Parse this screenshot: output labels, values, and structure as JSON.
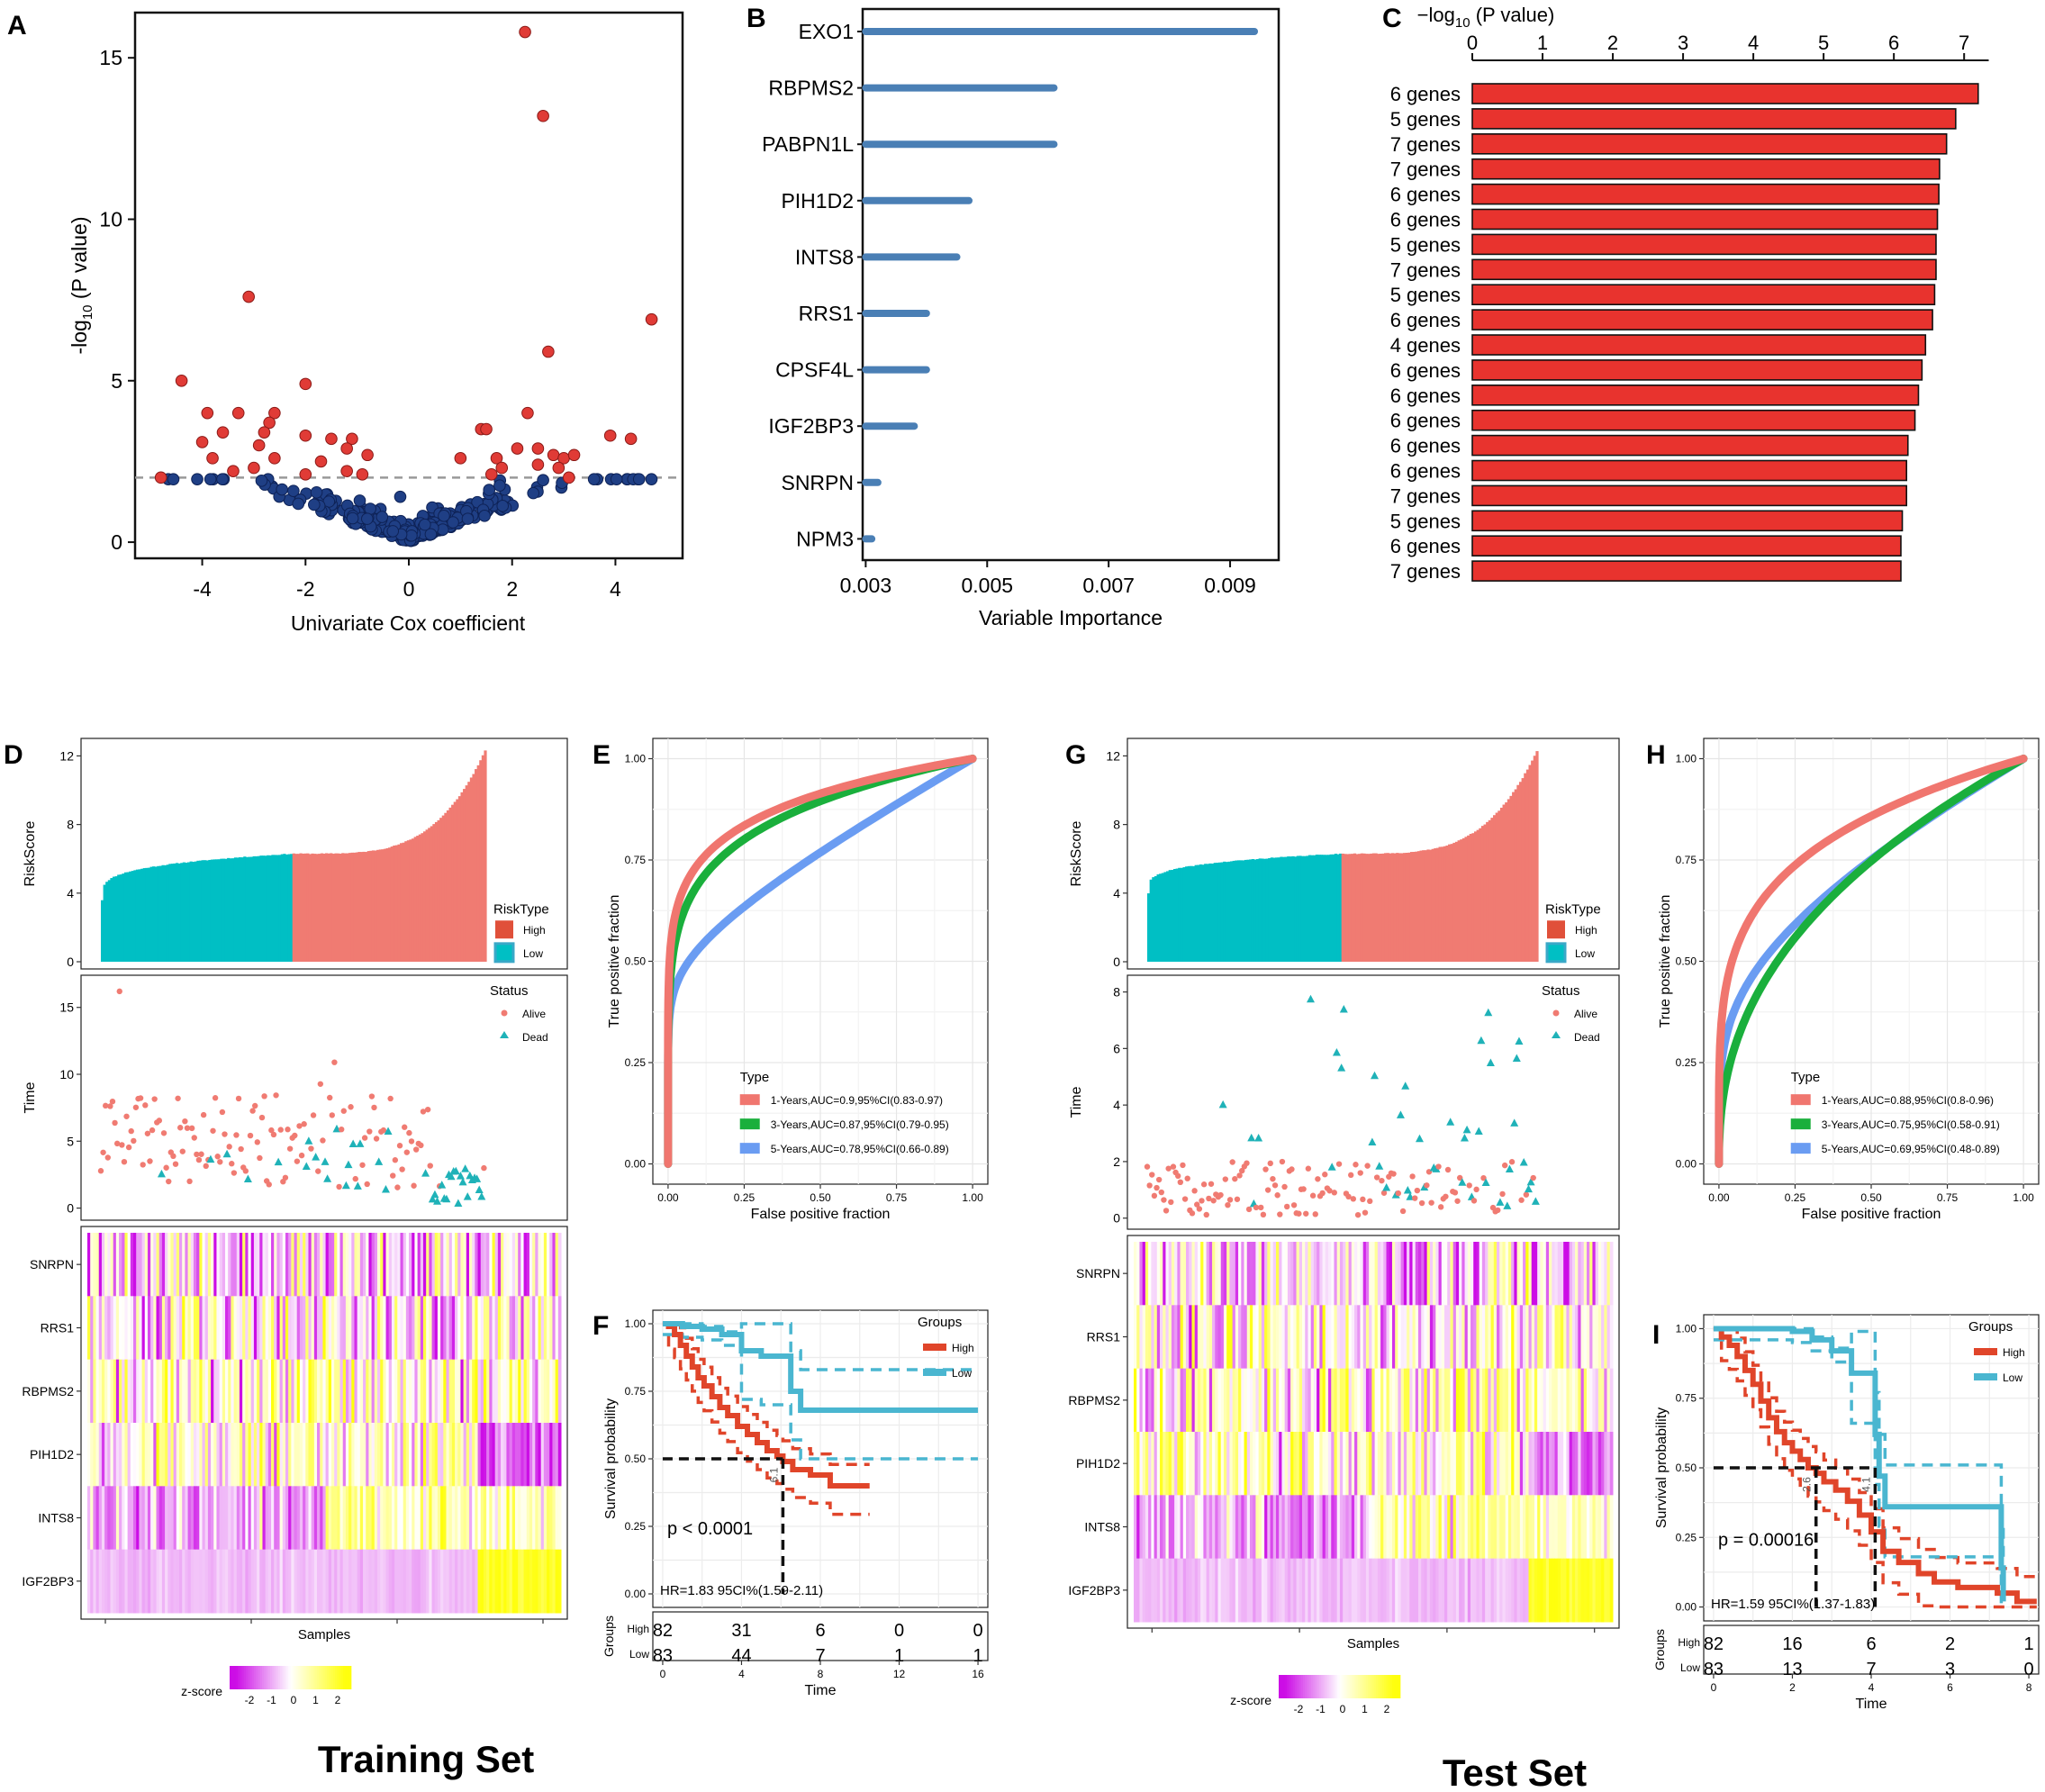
{
  "panel_letters": {
    "A": "A",
    "B": "B",
    "C": "C",
    "D": "D",
    "E": "E",
    "F": "F",
    "G": "G",
    "H": "H",
    "I": "I"
  },
  "set_titles": {
    "train": "Training Set",
    "test": "Test Set"
  },
  "colors": {
    "red": "#e03b36",
    "navy": "#1f3f85",
    "steel": "#4a7fb5",
    "barred": "#e8332e",
    "high": "#f07b72",
    "low": "#00bfc4",
    "dead": "#1fb2b8",
    "km_high": "#e0452a",
    "km_low": "#4ab6d0",
    "roc1": "#f0766f",
    "roc3": "#1aaf3c",
    "roc5": "#6a9cf2"
  },
  "chart_data": [
    {
      "id": "A",
      "type": "scatter",
      "xlabel": "Univariate Cox coefficient",
      "ylabel_main": "-log",
      "ylabel_sub": "10",
      "ylabel_tail": " (P value)",
      "xticks": [
        "-4",
        "-2",
        "0",
        "2",
        "4"
      ],
      "xtick_vals": [
        -4,
        -2,
        0,
        2,
        4
      ],
      "yticks": [
        "0",
        "5",
        "10",
        "15"
      ],
      "ytick_vals": [
        0,
        5,
        10,
        15
      ],
      "xlim": [
        -5.3,
        5.3
      ],
      "ylim": [
        -0.5,
        16.4
      ],
      "threshold": 2,
      "red_points": [
        [
          2.25,
          15.8
        ],
        [
          2.6,
          13.2
        ],
        [
          -3.1,
          7.6
        ],
        [
          4.7,
          6.9
        ],
        [
          2.7,
          5.9
        ],
        [
          -4.4,
          5.0
        ],
        [
          -2.0,
          4.9
        ],
        [
          -2.6,
          4.0
        ],
        [
          -3.3,
          4.0
        ],
        [
          -3.9,
          4.0
        ],
        [
          -2.7,
          3.7
        ],
        [
          -3.6,
          3.4
        ],
        [
          -2.8,
          3.4
        ],
        [
          -2.0,
          3.3
        ],
        [
          -1.1,
          3.2
        ],
        [
          -4.0,
          3.1
        ],
        [
          -2.9,
          3.0
        ],
        [
          -1.5,
          3.2
        ],
        [
          -1.2,
          2.9
        ],
        [
          -0.8,
          2.7
        ],
        [
          -3.8,
          2.6
        ],
        [
          -2.6,
          2.6
        ],
        [
          -1.7,
          2.5
        ],
        [
          -1.2,
          2.2
        ],
        [
          -3.4,
          2.2
        ],
        [
          -3.0,
          2.3
        ],
        [
          -2.0,
          2.1
        ],
        [
          -0.9,
          2.1
        ],
        [
          -4.8,
          2.0
        ],
        [
          1.4,
          3.5
        ],
        [
          1.5,
          3.5
        ],
        [
          2.3,
          4.0
        ],
        [
          3.9,
          3.3
        ],
        [
          4.3,
          3.2
        ],
        [
          2.1,
          2.9
        ],
        [
          2.5,
          2.9
        ],
        [
          2.8,
          2.7
        ],
        [
          3.0,
          2.6
        ],
        [
          3.2,
          2.7
        ],
        [
          1.7,
          2.6
        ],
        [
          1.8,
          2.3
        ],
        [
          2.5,
          2.4
        ],
        [
          1.0,
          2.6
        ],
        [
          2.9,
          2.3
        ],
        [
          1.6,
          2.1
        ],
        [
          3.1,
          2.0
        ]
      ],
      "blue_seed": 7,
      "blue_count": 300
    },
    {
      "id": "B",
      "type": "bar",
      "orientation": "horizontal",
      "xlabel": "Variable Importance",
      "categories": [
        "EXO1",
        "RBPMS2",
        "PABPN1L",
        "PIH1D2",
        "INTS8",
        "RRS1",
        "CPSF4L",
        "IGF2BP3",
        "SNRPN",
        "NPM3"
      ],
      "values": [
        0.0094,
        0.0061,
        0.0061,
        0.0047,
        0.0045,
        0.004,
        0.004,
        0.0038,
        0.0032,
        0.0031
      ],
      "xticks": [
        "0.003",
        "0.005",
        "0.007",
        "0.009"
      ],
      "xtick_vals": [
        0.003,
        0.005,
        0.007,
        0.009
      ],
      "xlim": [
        0.00295,
        0.0098
      ]
    },
    {
      "id": "C",
      "type": "bar",
      "orientation": "horizontal",
      "title_main": "−log",
      "title_sub": "10",
      "title_tail": " (P value)",
      "categories": [
        "6 genes",
        "5 genes",
        "7 genes",
        "7 genes",
        "6 genes",
        "6 genes",
        "5 genes",
        "7 genes",
        "5 genes",
        "6 genes",
        "4 genes",
        "6 genes",
        "6 genes",
        "6 genes",
        "6 genes",
        "6 genes",
        "7 genes",
        "5 genes",
        "6 genes",
        "7 genes"
      ],
      "values": [
        7.2,
        6.88,
        6.75,
        6.65,
        6.64,
        6.62,
        6.6,
        6.6,
        6.58,
        6.55,
        6.45,
        6.4,
        6.35,
        6.3,
        6.2,
        6.18,
        6.18,
        6.12,
        6.1,
        6.1
      ],
      "xticks": [
        "0",
        "1",
        "2",
        "3",
        "4",
        "5",
        "6",
        "7"
      ],
      "xtick_vals": [
        0,
        1,
        2,
        3,
        4,
        5,
        6,
        7
      ],
      "xlim": [
        0,
        7.6
      ]
    },
    {
      "id": "D",
      "type": "bar",
      "subtype": "risk-score-waterfall",
      "ylabel": "RiskScore",
      "yticks": [
        "0",
        "4",
        "8",
        "12"
      ],
      "ytick_vals": [
        0,
        4,
        8,
        12
      ],
      "ylim": [
        0,
        12.6
      ],
      "legend_title": "RiskType",
      "legend_items": [
        "High",
        "Low"
      ],
      "low_range": [
        3.6,
        6.3
      ],
      "high_range": [
        6.3,
        12.6
      ],
      "n": 165
    },
    {
      "id": "D2",
      "type": "scatter",
      "subtype": "survival-status",
      "ylabel": "Time",
      "yticks": [
        "0",
        "5",
        "10",
        "15"
      ],
      "ytick_vals": [
        0,
        5,
        10,
        15
      ],
      "ylim": [
        -0.5,
        17
      ],
      "legend_title": "Status",
      "legend_items": [
        "Alive",
        "Dead"
      ]
    },
    {
      "id": "D3",
      "type": "heatmap",
      "rows": [
        "SNRPN",
        "RRS1",
        "RBPMS2",
        "PIH1D2",
        "INTS8",
        "IGF2BP3"
      ],
      "xlabel": "Samples",
      "legend_title": "z-score",
      "legend_ticks": [
        "-2",
        "-1",
        "0",
        "1",
        "2"
      ]
    },
    {
      "id": "E",
      "type": "line",
      "subtype": "roc",
      "xlabel": "False positive fraction",
      "ylabel": "True positive fraction",
      "ticks": [
        "0.00",
        "0.25",
        "0.50",
        "0.75",
        "1.00"
      ],
      "tick_vals": [
        0,
        0.25,
        0.5,
        0.75,
        1
      ],
      "legend_title": "Type",
      "series": [
        {
          "name": "1-Years,AUC=0.9,95%CI(0.83-0.97)",
          "auc": 0.9
        },
        {
          "name": "3-Years,AUC=0.87,95%CI(0.79-0.95)",
          "auc": 0.87
        },
        {
          "name": "5-Years,AUC=0.78,95%CI(0.66-0.89)",
          "auc": 0.78
        }
      ]
    },
    {
      "id": "F",
      "type": "line",
      "subtype": "kaplan-meier",
      "xlabel": "Time",
      "ylabel": "Survival probability",
      "xticks": [
        "0",
        "4",
        "8",
        "12",
        "16"
      ],
      "xtick_vals": [
        0,
        4,
        8,
        12,
        16
      ],
      "xlim": [
        -0.5,
        16.5
      ],
      "yticks": [
        "0.00",
        "0.25",
        "0.50",
        "0.75",
        "1.00"
      ],
      "ytick_vals": [
        0,
        0.25,
        0.5,
        0.75,
        1
      ],
      "legend_title": "Groups",
      "legend_items": [
        "High",
        "Low"
      ],
      "pvalue": "p < 0.0001",
      "hr": "HR=1.83 95CI%(1.59-2.11)",
      "median_label": "6.1",
      "risk_table": {
        "label": "Groups",
        "rows": [
          {
            "name": "High",
            "counts": [
              "82",
              "31",
              "6",
              "0",
              "0"
            ]
          },
          {
            "name": "Low",
            "counts": [
              "83",
              "44",
              "7",
              "1",
              "1"
            ]
          }
        ]
      },
      "high": [
        [
          0,
          1
        ],
        [
          0.3,
          0.99
        ],
        [
          0.6,
          0.96
        ],
        [
          0.9,
          0.92
        ],
        [
          1.2,
          0.88
        ],
        [
          1.5,
          0.84
        ],
        [
          1.8,
          0.8
        ],
        [
          2.1,
          0.77
        ],
        [
          2.5,
          0.73
        ],
        [
          2.9,
          0.69
        ],
        [
          3.3,
          0.66
        ],
        [
          3.8,
          0.62
        ],
        [
          4.3,
          0.59
        ],
        [
          4.8,
          0.56
        ],
        [
          5.3,
          0.53
        ],
        [
          5.8,
          0.51
        ],
        [
          6.1,
          0.49
        ],
        [
          6.6,
          0.46
        ],
        [
          7.5,
          0.44
        ],
        [
          8.5,
          0.4
        ],
        [
          10.5,
          0.4
        ]
      ],
      "low": [
        [
          0,
          1
        ],
        [
          1,
          0.99
        ],
        [
          2,
          0.98
        ],
        [
          3,
          0.96
        ],
        [
          4,
          0.9
        ],
        [
          5,
          0.88
        ],
        [
          6,
          0.88
        ],
        [
          6.5,
          0.75
        ],
        [
          7,
          0.68
        ],
        [
          16,
          0.68
        ]
      ]
    },
    {
      "id": "G",
      "type": "bar",
      "subtype": "risk-score-waterfall",
      "ylabel": "RiskScore",
      "yticks": [
        "0",
        "4",
        "8",
        "12"
      ],
      "ytick_vals": [
        0,
        4,
        8,
        12
      ],
      "ylim": [
        0,
        12.6
      ],
      "legend_title": "RiskType",
      "legend_items": [
        "High",
        "Low"
      ],
      "low_range": [
        4.0,
        6.3
      ],
      "high_range": [
        6.3,
        12.6
      ],
      "n": 165
    },
    {
      "id": "G2",
      "type": "scatter",
      "subtype": "survival-status",
      "ylabel": "Time",
      "yticks": [
        "0",
        "2",
        "4",
        "6",
        "8"
      ],
      "ytick_vals": [
        0,
        2,
        4,
        6,
        8
      ],
      "ylim": [
        -0.2,
        8.4
      ],
      "legend_title": "Status",
      "legend_items": [
        "Alive",
        "Dead"
      ]
    },
    {
      "id": "G3",
      "type": "heatmap",
      "rows": [
        "SNRPN",
        "RRS1",
        "RBPMS2",
        "PIH1D2",
        "INTS8",
        "IGF2BP3"
      ],
      "xlabel": "Samples",
      "legend_title": "z-score",
      "legend_ticks": [
        "-2",
        "-1",
        "0",
        "1",
        "2"
      ]
    },
    {
      "id": "H",
      "type": "line",
      "subtype": "roc",
      "xlabel": "False positive fraction",
      "ylabel": "True positive fraction",
      "ticks": [
        "0.00",
        "0.25",
        "0.50",
        "0.75",
        "1.00"
      ],
      "tick_vals": [
        0,
        0.25,
        0.5,
        0.75,
        1
      ],
      "legend_title": "Type",
      "series": [
        {
          "name": "1-Years,AUC=0.88,95%CI(0.8-0.96)",
          "auc": 0.88
        },
        {
          "name": "3-Years,AUC=0.75,95%CI(0.58-0.91)",
          "auc": 0.75
        },
        {
          "name": "5-Years,AUC=0.69,95%CI(0.48-0.89)",
          "auc": 0.69
        }
      ]
    },
    {
      "id": "I",
      "type": "line",
      "subtype": "kaplan-meier",
      "xlabel": "Time",
      "ylabel": "Survival probability",
      "xticks": [
        "0",
        "2",
        "4",
        "6",
        "8"
      ],
      "xtick_vals": [
        0,
        2,
        4,
        6,
        8
      ],
      "xlim": [
        -0.25,
        8.25
      ],
      "yticks": [
        "0.00",
        "0.25",
        "0.50",
        "0.75",
        "1.00"
      ],
      "ytick_vals": [
        0,
        0.25,
        0.5,
        0.75,
        1
      ],
      "legend_title": "Groups",
      "legend_items": [
        "High",
        "Low"
      ],
      "pvalue": "p = 0.00016",
      "hr": "HR=1.59 95CI%(1.37-1.83)",
      "median_label": "2.6",
      "median_label2": "4.1",
      "risk_table": {
        "label": "Groups",
        "rows": [
          {
            "name": "High",
            "counts": [
              "82",
              "16",
              "6",
              "2",
              "1"
            ]
          },
          {
            "name": "Low",
            "counts": [
              "83",
              "13",
              "7",
              "3",
              "0"
            ]
          }
        ]
      },
      "high": [
        [
          0,
          1
        ],
        [
          0.2,
          0.97
        ],
        [
          0.4,
          0.94
        ],
        [
          0.6,
          0.9
        ],
        [
          0.8,
          0.85
        ],
        [
          1.0,
          0.8
        ],
        [
          1.2,
          0.74
        ],
        [
          1.4,
          0.68
        ],
        [
          1.6,
          0.63
        ],
        [
          1.8,
          0.59
        ],
        [
          2.0,
          0.56
        ],
        [
          2.2,
          0.53
        ],
        [
          2.4,
          0.5
        ],
        [
          2.6,
          0.48
        ],
        [
          2.8,
          0.45
        ],
        [
          3.1,
          0.42
        ],
        [
          3.4,
          0.38
        ],
        [
          3.7,
          0.33
        ],
        [
          4.0,
          0.27
        ],
        [
          4.3,
          0.2
        ],
        [
          4.7,
          0.16
        ],
        [
          5.2,
          0.12
        ],
        [
          5.6,
          0.09
        ],
        [
          6.2,
          0.07
        ],
        [
          7.2,
          0.05
        ],
        [
          7.7,
          0.02
        ],
        [
          8.2,
          0.02
        ]
      ],
      "low": [
        [
          0,
          1
        ],
        [
          1.2,
          1.0
        ],
        [
          2.0,
          0.99
        ],
        [
          2.5,
          0.96
        ],
        [
          3,
          0.92
        ],
        [
          3.5,
          0.84
        ],
        [
          4.1,
          0.62
        ],
        [
          4.2,
          0.47
        ],
        [
          4.35,
          0.36
        ],
        [
          7.2,
          0.36
        ],
        [
          7.3,
          0.14
        ],
        [
          7.35,
          0.02
        ]
      ]
    }
  ]
}
